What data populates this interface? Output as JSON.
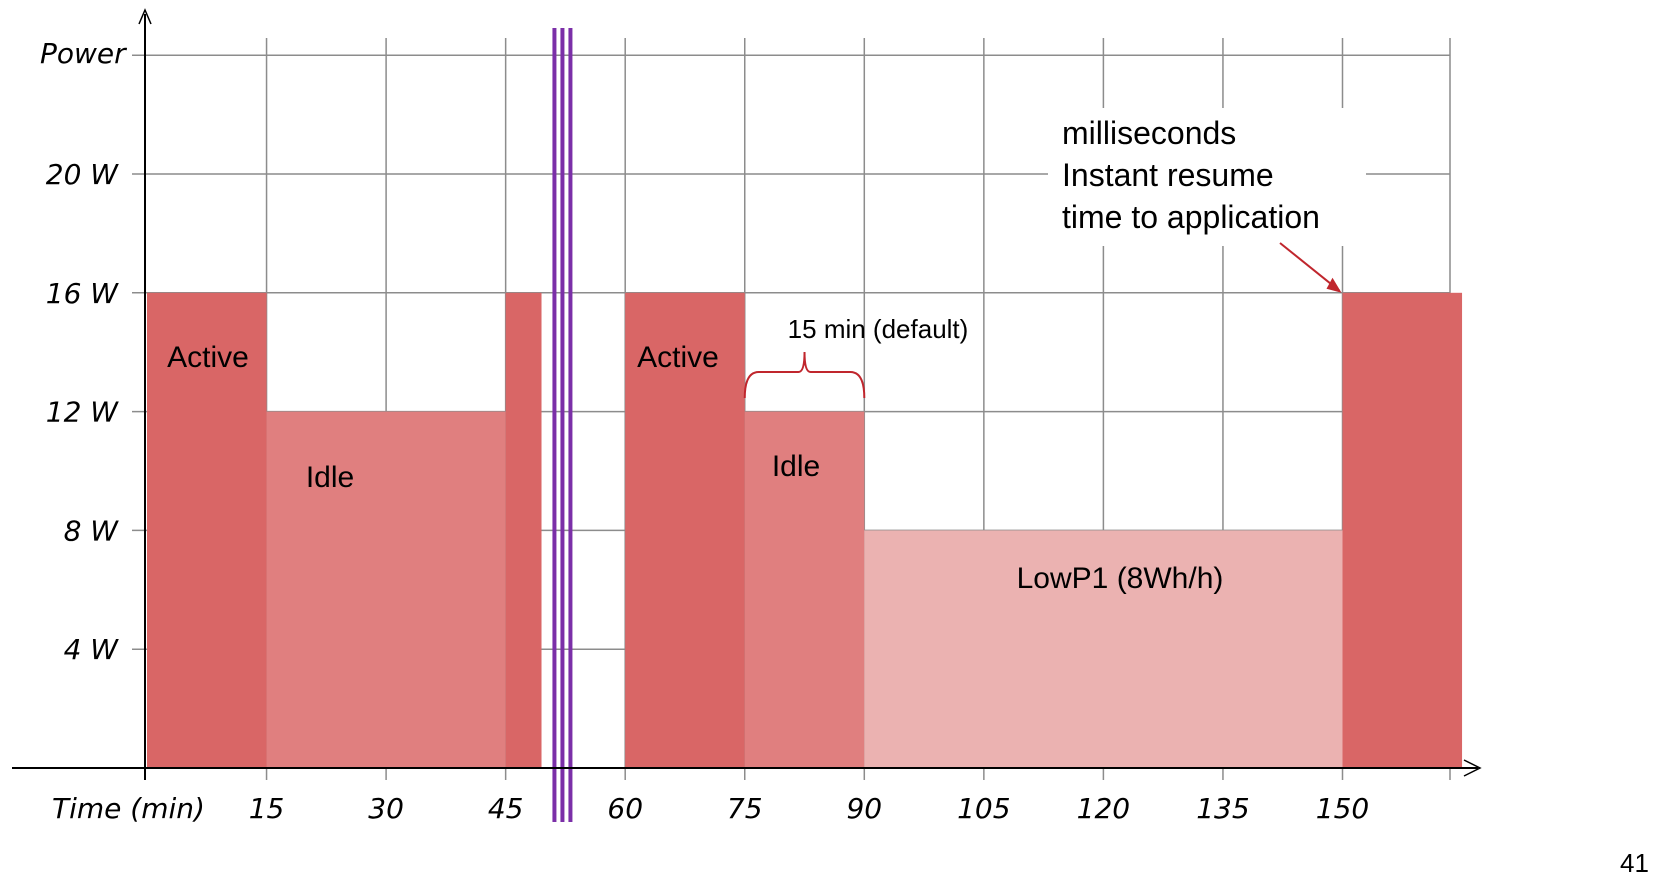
{
  "chart_data": {
    "type": "area",
    "ylabel": "Power",
    "xlabel": "Time (min)",
    "y_ticks": [
      "4 W",
      "8 W",
      "12 W",
      "16 W",
      "20 W"
    ],
    "y_tick_values": [
      4,
      8,
      12,
      16,
      20
    ],
    "x_ticks": [
      "15",
      "30",
      "45",
      "60",
      "75",
      "90",
      "105",
      "120",
      "135",
      "150"
    ],
    "x_tick_values": [
      15,
      30,
      45,
      60,
      75,
      90,
      105,
      120,
      135,
      150
    ],
    "xlim": [
      0,
      165
    ],
    "ylim": [
      0,
      24
    ],
    "grid": true,
    "segments": [
      {
        "x0": 0,
        "x1": 15,
        "power": 16,
        "state": "active",
        "label": "Active"
      },
      {
        "x0": 15,
        "x1": 45,
        "power": 12,
        "state": "idle",
        "label": "Idle"
      },
      {
        "x0": 45,
        "x1": 49.5,
        "power": 16,
        "state": "active",
        "label": ""
      },
      {
        "x0": 60,
        "x1": 75,
        "power": 16,
        "state": "active",
        "label": "Active"
      },
      {
        "x0": 75,
        "x1": 90,
        "power": 12,
        "state": "idle",
        "label": "Idle"
      },
      {
        "x0": 90,
        "x1": 150,
        "power": 8,
        "state": "lowp",
        "label": "LowP1 (8Wh/h)"
      },
      {
        "x0": 150,
        "x1": 165,
        "power": 16,
        "state": "active",
        "label": ""
      }
    ],
    "axis_break_at": 52,
    "annotations": {
      "brace_label": "15 min (default)",
      "brace_range": [
        75,
        90
      ],
      "resume_lines": [
        "milliseconds",
        "Instant resume",
        "time to application"
      ],
      "resume_arrow_target": [
        150,
        16
      ]
    }
  },
  "colors": {
    "active": "#d96666",
    "idle": "#e07f7f",
    "lowp": "#ebb2b1",
    "grid": "#8c8c8c",
    "break_lines": "#7b2fa8",
    "brace": "#c0262d",
    "arrow": "#c0262d"
  },
  "page_number": "41"
}
